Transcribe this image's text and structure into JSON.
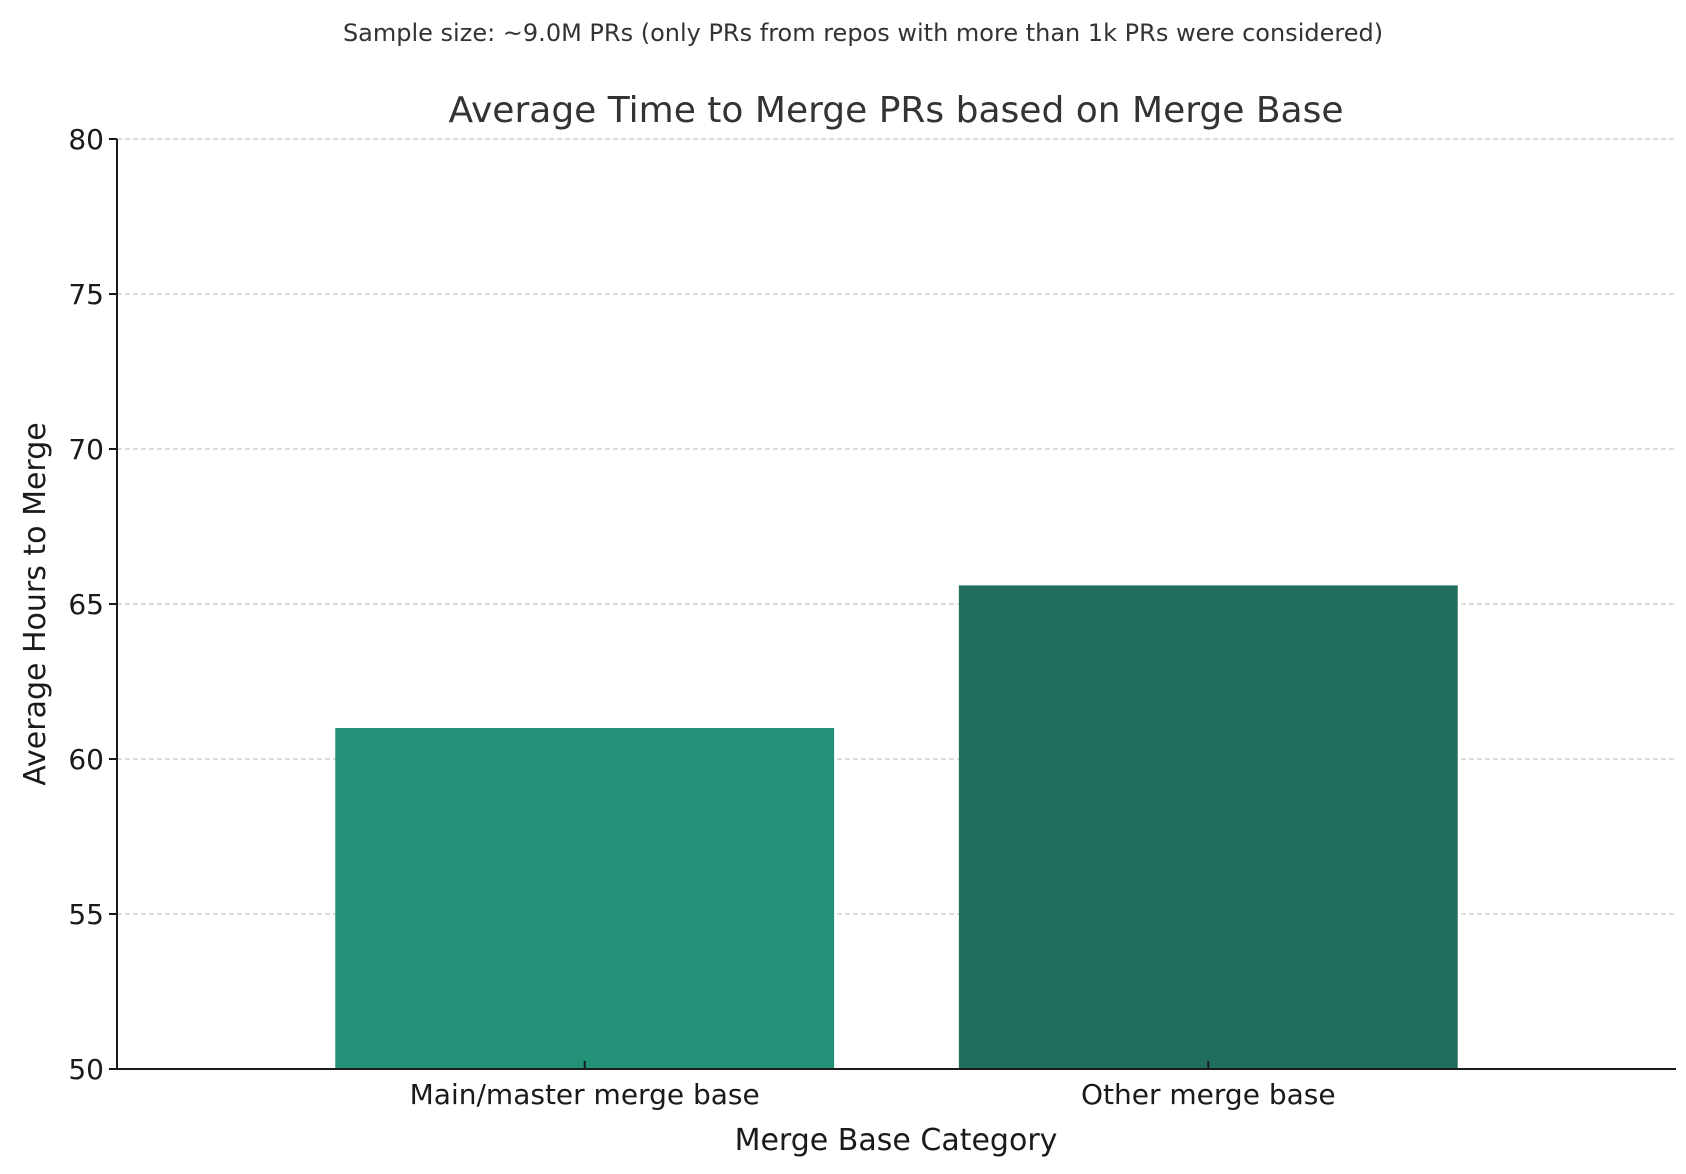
{
  "chart_data": {
    "type": "bar",
    "subtitle": "Sample size: ~9.0M PRs (only PRs from repos with more than 1k PRs were considered)",
    "title": "Average Time to Merge PRs based on Merge Base",
    "xlabel": "Merge Base Category",
    "ylabel": "Average Hours to Merge",
    "categories": [
      "Main/master merge base",
      "Other merge base"
    ],
    "values": [
      61.0,
      65.6
    ],
    "colors": [
      "#239178",
      "#226e5e"
    ],
    "ylim": [
      50,
      80
    ],
    "yticks": [
      50,
      55,
      60,
      65,
      70,
      75,
      80
    ],
    "grid": true,
    "grid_axis": "y",
    "legend": false
  }
}
